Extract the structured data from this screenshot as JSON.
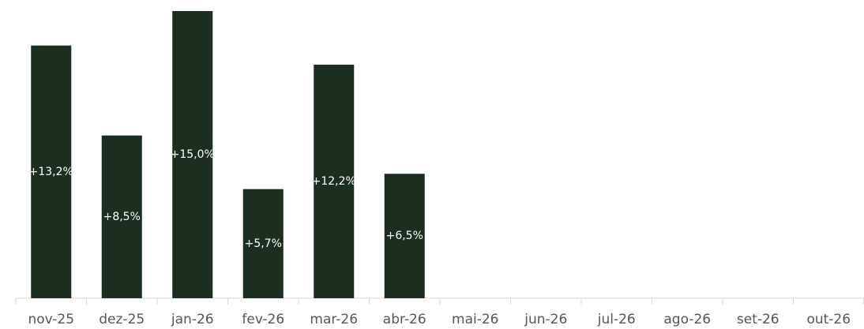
{
  "chart_data": {
    "type": "bar",
    "categories": [
      "nov-25",
      "dez-25",
      "jan-26",
      "fev-26",
      "mar-26",
      "abr-26",
      "mai-26",
      "jun-26",
      "jul-26",
      "ago-26",
      "set-26",
      "out-26"
    ],
    "values": [
      13.2,
      8.5,
      15.0,
      5.7,
      12.2,
      6.5,
      null,
      null,
      null,
      null,
      null,
      null
    ],
    "value_labels": [
      "+13,2%",
      "+8,5%",
      "+15,0%",
      "+5,7%",
      "+12,2%",
      "+6,5%",
      null,
      null,
      null,
      null,
      null,
      null
    ],
    "color": "#1c2e1f"
  }
}
